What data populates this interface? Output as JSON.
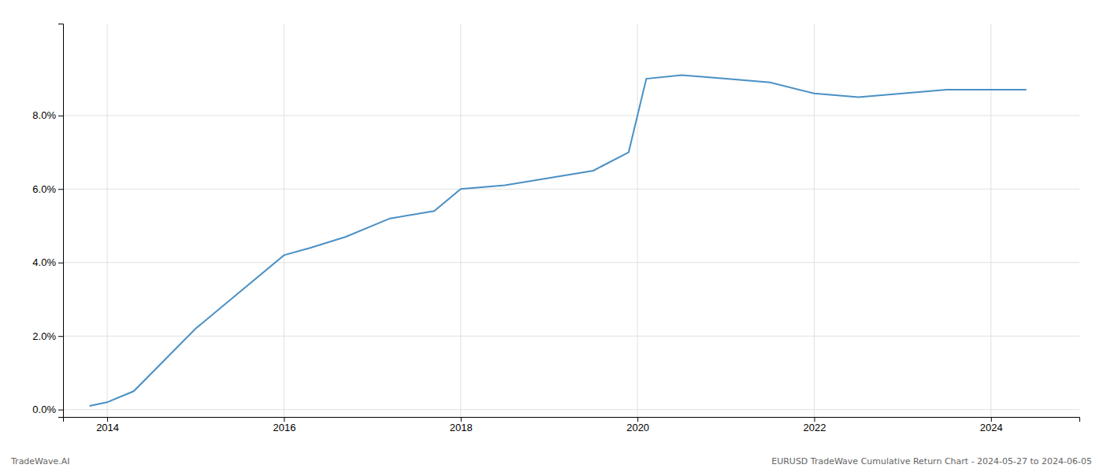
{
  "chart_data": {
    "type": "line",
    "x": [
      2013.8,
      2014.0,
      2014.3,
      2015.0,
      2016.0,
      2016.3,
      2016.7,
      2017.2,
      2017.7,
      2018.0,
      2018.5,
      2019.0,
      2019.5,
      2019.9,
      2020.1,
      2020.5,
      2021.0,
      2021.5,
      2022.0,
      2022.5,
      2023.0,
      2023.5,
      2024.0,
      2024.4
    ],
    "values": [
      0.001,
      0.002,
      0.005,
      0.022,
      0.042,
      0.044,
      0.047,
      0.052,
      0.054,
      0.06,
      0.061,
      0.063,
      0.065,
      0.07,
      0.09,
      0.091,
      0.09,
      0.089,
      0.086,
      0.085,
      0.086,
      0.087,
      0.087,
      0.087
    ],
    "color": "#4a90c4",
    "xlim": [
      2013.5,
      2025.0
    ],
    "ylim": [
      -0.002,
      0.105
    ],
    "xticks": [
      2014,
      2016,
      2018,
      2020,
      2022,
      2024
    ],
    "yticks": [
      {
        "value": 0.0,
        "label": "0.0%"
      },
      {
        "value": 0.02,
        "label": "2.0%"
      },
      {
        "value": 0.04,
        "label": "4.0%"
      },
      {
        "value": 0.06,
        "label": "6.0%"
      },
      {
        "value": 0.08,
        "label": "8.0%"
      }
    ],
    "grid": true,
    "annotations": [
      "TradeWave.AI",
      "EURUSD TradeWave Cumulative Return Chart - 2024-05-27 to 2024-06-05"
    ]
  }
}
